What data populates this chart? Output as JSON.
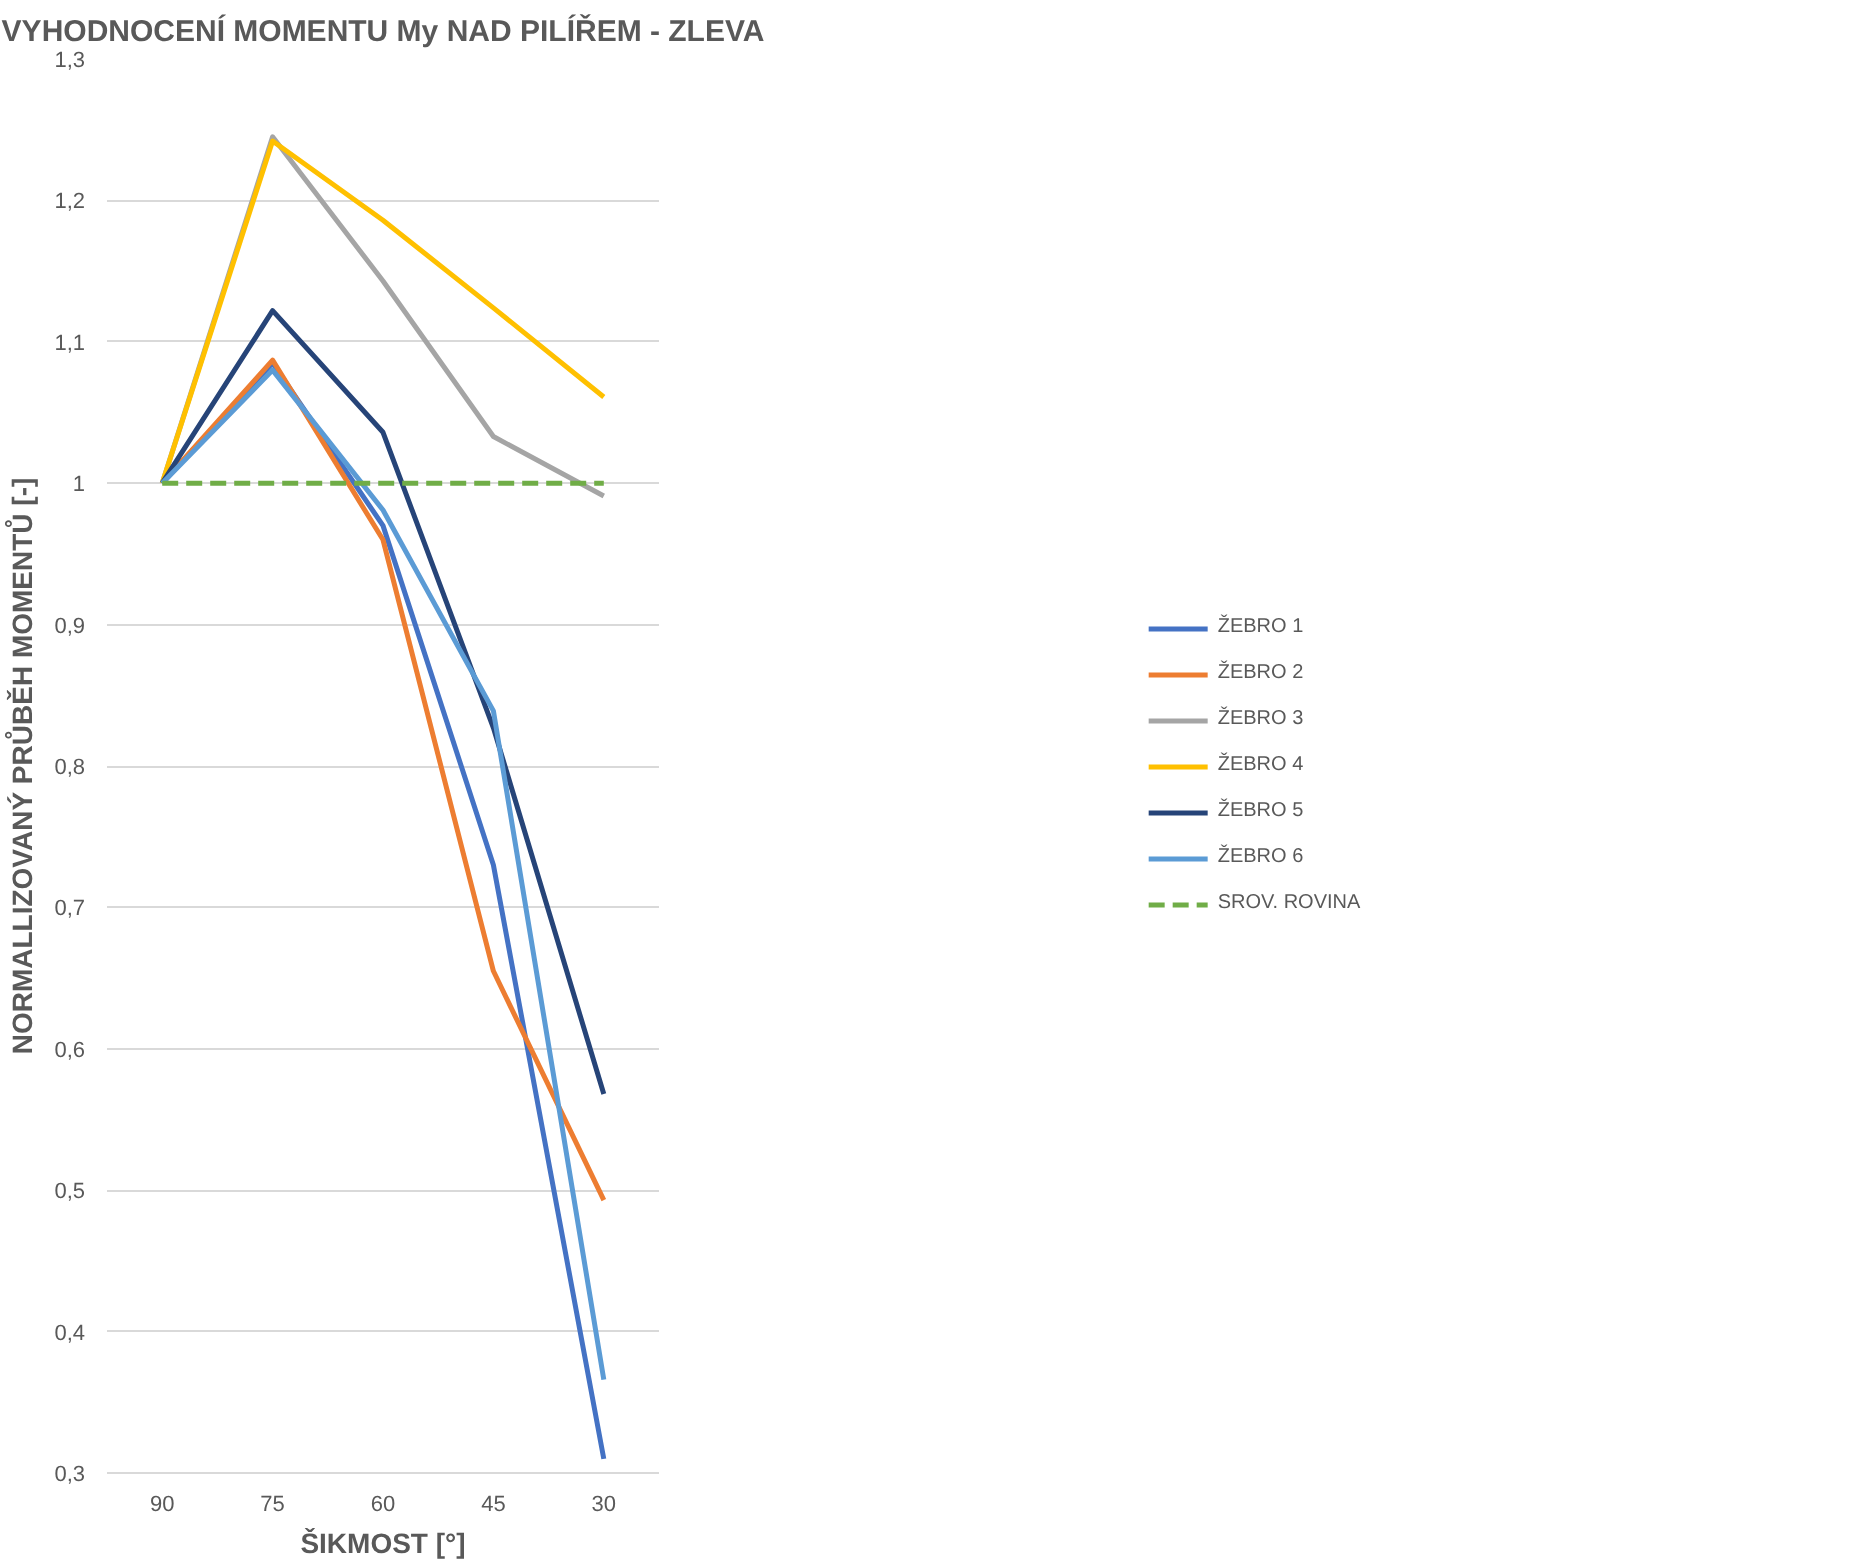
{
  "chart_data": {
    "type": "line",
    "title": "VYHODNOCENÍ MOMENTU My NAD PILÍŘEM - ZLEVA",
    "xlabel": "ŠIKMOST [°]",
    "ylabel": "NORMALLIZOVANÝ PRŮBĚH MOMENTŮ [-]",
    "categories": [
      "90",
      "75",
      "60",
      "45",
      "30"
    ],
    "series": [
      {
        "name": "ŽEBRO 1",
        "color": "#4472c4",
        "values": [
          1.0,
          1.085,
          0.97,
          0.73,
          0.31
        ]
      },
      {
        "name": "ŽEBRO 2",
        "color": "#ed7d31",
        "values": [
          1.0,
          1.087,
          0.96,
          0.655,
          0.493
        ]
      },
      {
        "name": "ŽEBRO 3",
        "color": "#a5a5a5",
        "values": [
          1.0,
          1.245,
          1.143,
          1.033,
          0.991
        ]
      },
      {
        "name": "ŽEBRO 4",
        "color": "#ffc000",
        "values": [
          1.0,
          1.242,
          1.186,
          1.124,
          1.061
        ]
      },
      {
        "name": "ŽEBRO 5",
        "color": "#264478",
        "values": [
          1.0,
          1.122,
          1.036,
          0.827,
          0.568
        ]
      },
      {
        "name": "ŽEBRO 6",
        "color": "#5b9bd5",
        "values": [
          1.0,
          1.08,
          0.981,
          0.839,
          0.366
        ]
      },
      {
        "name": "SROV. ROVINA",
        "color": "#70ad47",
        "line_style": "dashed",
        "values": [
          1.0,
          1.0,
          1.0,
          1.0,
          1.0
        ]
      }
    ],
    "ylim": [
      0.3,
      1.3
    ],
    "yticks": [
      {
        "value": 0.3,
        "label": "0,3"
      },
      {
        "value": 0.4,
        "label": "0,4"
      },
      {
        "value": 0.5,
        "label": "0,5"
      },
      {
        "value": 0.6,
        "label": "0,6"
      },
      {
        "value": 0.7,
        "label": "0,7"
      },
      {
        "value": 0.8,
        "label": "0,8"
      },
      {
        "value": 0.9,
        "label": "0,9"
      },
      1,
      {
        "value": 1.1,
        "label": "1,1"
      },
      {
        "value": 1.2,
        "label": "1,2"
      },
      {
        "value": 1.3,
        "label": "1,3"
      }
    ],
    "grid": "y",
    "legend": "right",
    "marker": "none",
    "line_style": "solid"
  }
}
